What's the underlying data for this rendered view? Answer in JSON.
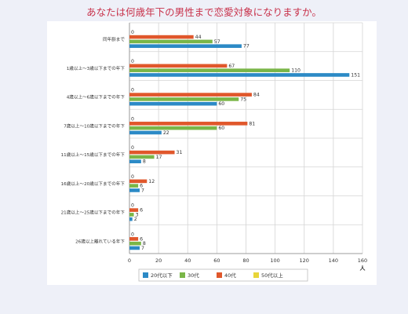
{
  "chart_data": {
    "type": "bar",
    "orientation": "horizontal",
    "title": "あなたは何歳年下の男性まで恋愛対象になりますか。",
    "xlabel": "人",
    "ylabel": "",
    "xlim": [
      0,
      160
    ],
    "x_ticks": [
      0,
      20,
      40,
      60,
      80,
      100,
      120,
      140,
      160
    ],
    "grid": true,
    "legend_position": "bottom",
    "categories": [
      "同年齢まで",
      "1歳以上〜3歳以下までの年下",
      "4歳以上〜6歳以下までの年下",
      "7歳以上〜10歳以下までの年下",
      "11歳以上〜15歳以下までの年下",
      "16歳以上〜20歳以下までの年下",
      "21歳以上〜25歳以下までの年下",
      "26歳以上離れている年下"
    ],
    "series": [
      {
        "name": "20代以下",
        "color": "#2c8ac6",
        "values": [
          77,
          151,
          60,
          22,
          8,
          7,
          2,
          7
        ]
      },
      {
        "name": "30代",
        "color": "#7ab648",
        "values": [
          57,
          110,
          75,
          60,
          17,
          6,
          3,
          8
        ]
      },
      {
        "name": "40代",
        "color": "#e0572b",
        "values": [
          44,
          67,
          84,
          81,
          31,
          12,
          6,
          6
        ]
      },
      {
        "name": "50代以上",
        "color": "#e8d53a",
        "values": [
          0,
          0,
          0,
          0,
          0,
          0,
          0,
          0
        ]
      }
    ]
  }
}
